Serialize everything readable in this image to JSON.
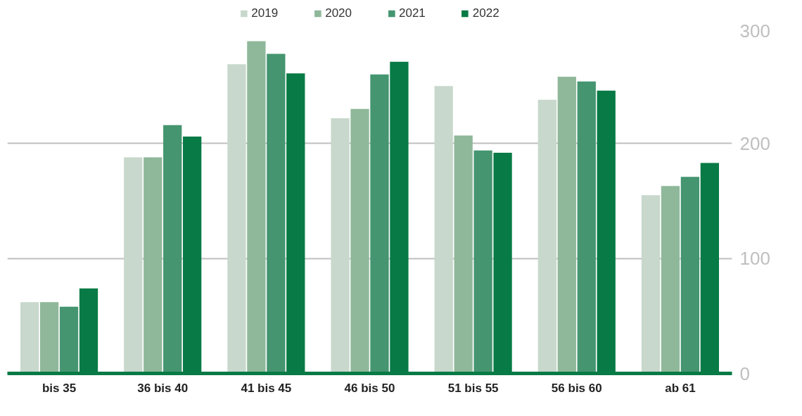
{
  "chart_data": {
    "type": "bar",
    "categories": [
      "bis 35",
      "36 bis 40",
      "41 bis 45",
      "46 bis 50",
      "51 bis 55",
      "56 bis 60",
      "ab 61"
    ],
    "series": [
      {
        "name": "2019",
        "color": "#c8d8cc",
        "values": [
          62,
          188,
          269,
          222,
          250,
          238,
          155
        ]
      },
      {
        "name": "2020",
        "color": "#8fb89a",
        "values": [
          62,
          188,
          289,
          230,
          207,
          258,
          163
        ]
      },
      {
        "name": "2021",
        "color": "#449570",
        "values": [
          58,
          216,
          278,
          260,
          194,
          254,
          171
        ]
      },
      {
        "name": "2022",
        "color": "#087a45",
        "values": [
          74,
          206,
          261,
          271,
          192,
          246,
          183
        ]
      }
    ],
    "ylim": [
      0,
      300
    ],
    "yticks": [
      0,
      100,
      200,
      300
    ],
    "grid": "y",
    "legend": "top"
  }
}
